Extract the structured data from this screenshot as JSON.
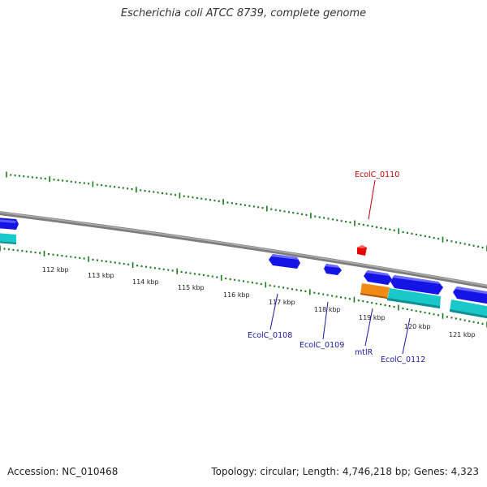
{
  "title": "Escherichia coli ATCC 8739, complete genome",
  "footer": {
    "accession": "Accession: NC_010468",
    "summary": "Topology: circular; Length: 4,746,218 bp; Genes: 4,323"
  },
  "colors": {
    "tick": "#1a7a1a",
    "backbone": "#8a8a8a",
    "gene_forward": "#1414e6",
    "gene_reverse": "#e60000",
    "cds": "#19c8c8",
    "rna": "#f08c14",
    "label_forward": "#1a1aa0",
    "label_reverse": "#c00000"
  },
  "scale_labels": [
    "112 kbp",
    "113 kbp",
    "114 kbp",
    "115 kbp",
    "116 kbp",
    "117 kbp",
    "118 kbp",
    "119 kbp",
    "120 kbp",
    "121 kbp"
  ],
  "gene_labels": [
    {
      "name": "EcolC_0110",
      "strand": "reverse"
    },
    {
      "name": "EcolC_0108",
      "strand": "forward"
    },
    {
      "name": "EcolC_0109",
      "strand": "forward"
    },
    {
      "name": "mtlR",
      "strand": "forward"
    },
    {
      "name": "EcolC_0112",
      "strand": "forward"
    }
  ]
}
